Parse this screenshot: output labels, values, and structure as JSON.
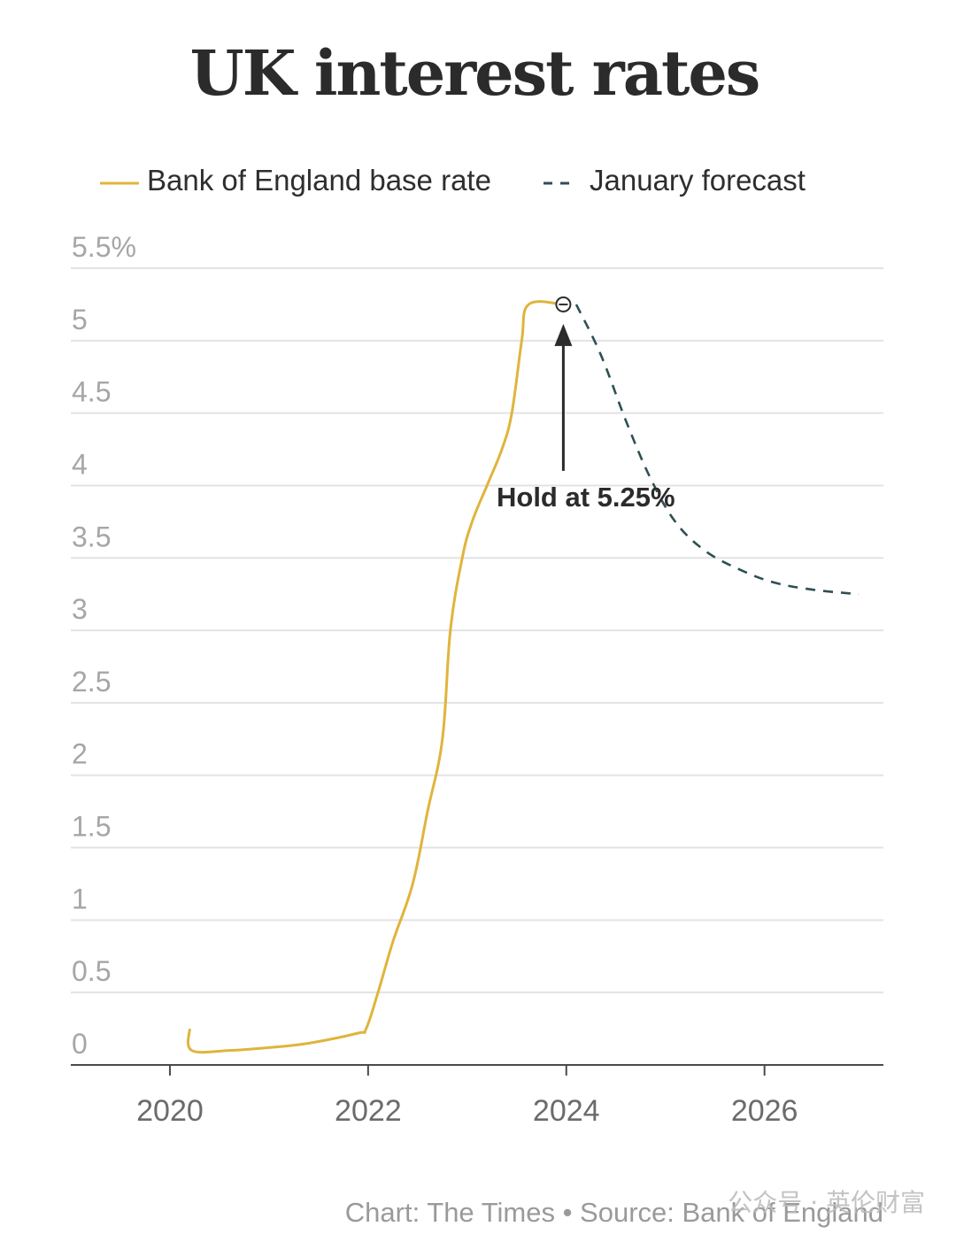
{
  "chart_data": {
    "type": "line",
    "title": "UK interest rates",
    "ylim": [
      0,
      5.5
    ],
    "y_ticks": [
      "0",
      "0.5",
      "1",
      "1.5",
      "2",
      "2.5",
      "3",
      "3.5",
      "4",
      "4.5",
      "5",
      "5.5%"
    ],
    "xlim": [
      2019,
      2027.2
    ],
    "x_ticks": [
      "2020",
      "2022",
      "2024",
      "2026"
    ],
    "grid": true,
    "legend_position": "top",
    "series": [
      {
        "name": "Bank of England base rate",
        "color": "#e0b43c",
        "style": "solid",
        "points": [
          [
            2020.2,
            0.25
          ],
          [
            2020.22,
            0.1
          ],
          [
            2020.6,
            0.1
          ],
          [
            2021.0,
            0.12
          ],
          [
            2021.4,
            0.15
          ],
          [
            2021.9,
            0.22
          ],
          [
            2021.98,
            0.25
          ],
          [
            2022.1,
            0.5
          ],
          [
            2022.25,
            0.85
          ],
          [
            2022.45,
            1.25
          ],
          [
            2022.6,
            1.75
          ],
          [
            2022.75,
            2.25
          ],
          [
            2022.83,
            3.0
          ],
          [
            2022.95,
            3.5
          ],
          [
            2023.05,
            3.75
          ],
          [
            2023.2,
            4.0
          ],
          [
            2023.35,
            4.25
          ],
          [
            2023.45,
            4.5
          ],
          [
            2023.55,
            5.0
          ],
          [
            2023.62,
            5.25
          ],
          [
            2023.97,
            5.25
          ]
        ]
      },
      {
        "name": "January forecast",
        "color": "#2f4f54",
        "style": "dashed",
        "points": [
          [
            2024.1,
            5.25
          ],
          [
            2024.35,
            4.9
          ],
          [
            2024.6,
            4.45
          ],
          [
            2024.85,
            4.05
          ],
          [
            2025.1,
            3.75
          ],
          [
            2025.4,
            3.55
          ],
          [
            2025.75,
            3.42
          ],
          [
            2026.1,
            3.33
          ],
          [
            2026.5,
            3.28
          ],
          [
            2026.95,
            3.25
          ]
        ]
      }
    ],
    "annotation": {
      "text": "Hold at 5.25%",
      "x": 2023.97,
      "y": 5.25
    },
    "footer": "Chart: The Times • Source: Bank of England",
    "watermark": "公众号 · 英伦财富"
  }
}
